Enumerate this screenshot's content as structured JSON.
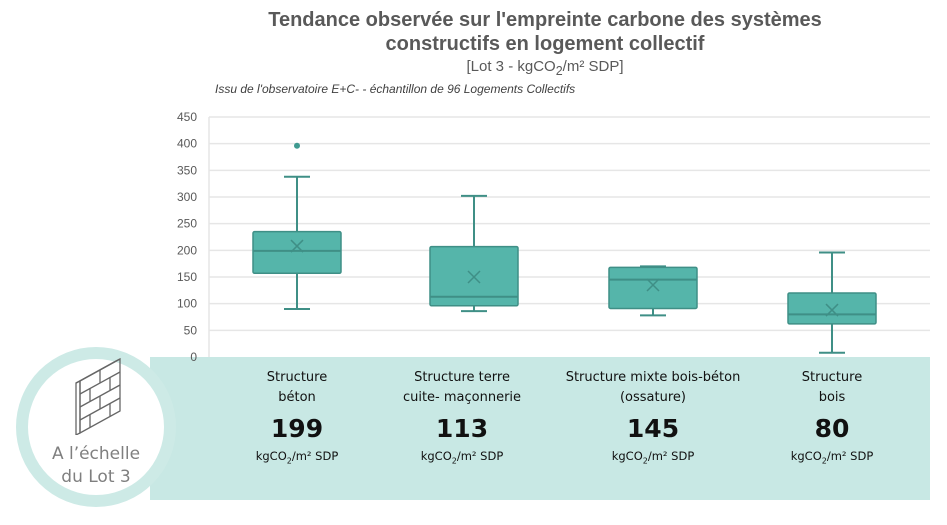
{
  "title_line1": "Tendance observée sur l'empreinte carbone des systèmes",
  "title_line2": "constructifs en logement collectif",
  "subtitle_pre": "[Lot 3 - kgCO",
  "subtitle_sub": "2",
  "subtitle_post": "/m² SDP]",
  "note": "Issu de l'observatoire E+C- - échantillon de 96 Logements Collectifs",
  "badge": {
    "line1": "A l’échelle",
    "line2": "du Lot 3",
    "icon": "brick-wall-icon"
  },
  "colors": {
    "box_fill": "#55b5aa",
    "box_stroke": "#3f8f86",
    "band": "#c8e8e4",
    "grid": "#e6e6e6"
  },
  "unit": {
    "pre": "kgCO",
    "sub": "2",
    "post": "/m² SDP"
  },
  "chart_data": {
    "type": "boxplot",
    "title": "Tendance observée sur l'empreinte carbone des systèmes constructifs en logement collectif",
    "ylabel": "kgCO2/m² SDP",
    "ylim": [
      0,
      450
    ],
    "yticks": [
      "0",
      "50",
      "100",
      "150",
      "200",
      "250",
      "300",
      "350",
      "400",
      "450"
    ],
    "grid": true,
    "categories": [
      {
        "label_1": "Structure",
        "label_2": "béton",
        "median_label": "199",
        "min": 90,
        "q1": 157,
        "median": 199,
        "q3": 235,
        "max": 338,
        "mean": 208,
        "outliers": [
          396
        ]
      },
      {
        "label_1": "Structure terre",
        "label_2": "cuite- maçonnerie",
        "median_label": "113",
        "min": 86,
        "q1": 96,
        "median": 113,
        "q3": 207,
        "max": 302,
        "mean": 150,
        "outliers": []
      },
      {
        "label_1": "Structure mixte bois-béton",
        "label_2": "(ossature)",
        "median_label": "145",
        "min": 78,
        "q1": 91,
        "median": 145,
        "q3": 168,
        "max": 170,
        "mean": 135,
        "outliers": []
      },
      {
        "label_1": "Structure",
        "label_2": "bois",
        "median_label": "80",
        "min": 8,
        "q1": 62,
        "median": 80,
        "q3": 120,
        "max": 196,
        "mean": 88,
        "outliers": []
      }
    ]
  }
}
